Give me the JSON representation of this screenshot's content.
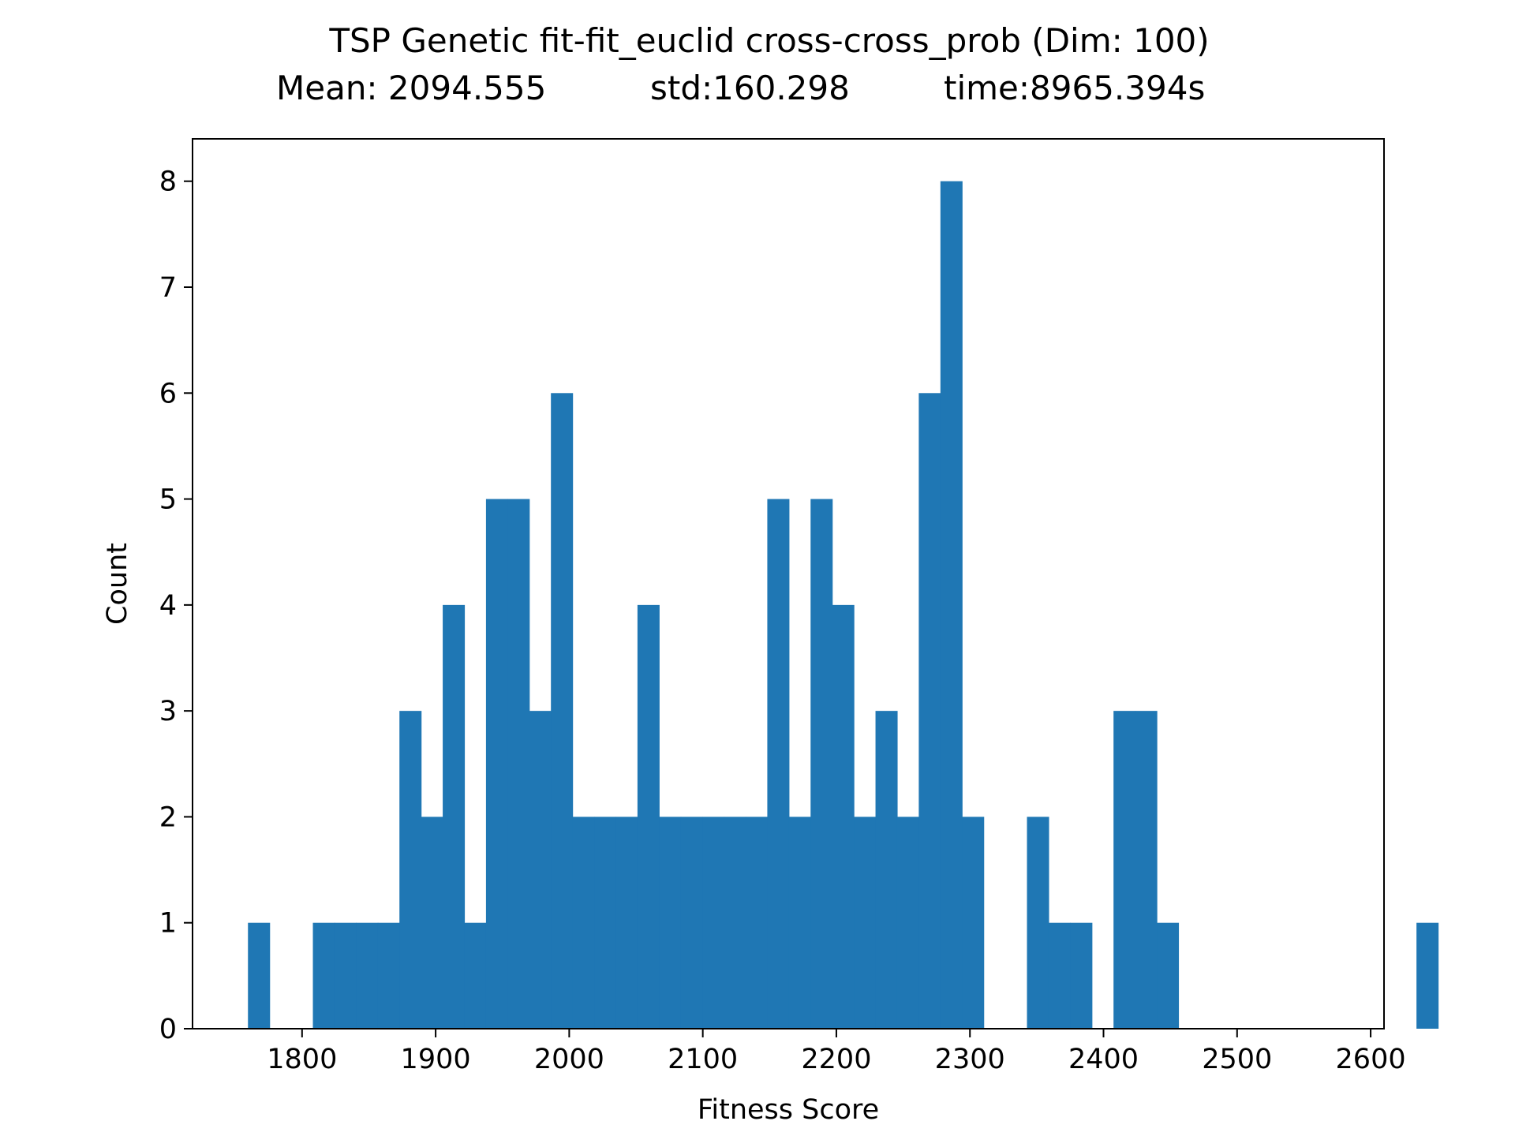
{
  "chart_data": {
    "type": "bar",
    "title": "TSP Genetic fit-fit_euclid cross-cross_prob (Dim: 100)",
    "subtitle": {
      "mean": "Mean: 2094.555",
      "std": "std:160.298",
      "time": "time:8965.394s"
    },
    "xlabel": "Fitness Score",
    "ylabel": "Count",
    "xlim": [
      1718,
      2610
    ],
    "ylim": [
      0,
      8.4
    ],
    "xticks": [
      1800,
      1900,
      2000,
      2100,
      2200,
      2300,
      2400,
      2500,
      2600
    ],
    "yticks": [
      0,
      1,
      2,
      3,
      4,
      5,
      6,
      7,
      8
    ],
    "bin_start": 1759.5,
    "bin_width": 16.2,
    "counts": [
      1,
      0,
      0,
      1,
      1,
      1,
      1,
      3,
      2,
      4,
      1,
      5,
      5,
      3,
      6,
      2,
      2,
      2,
      4,
      2,
      2,
      2,
      2,
      2,
      5,
      2,
      5,
      4,
      2,
      3,
      2,
      6,
      8,
      2,
      0,
      0,
      2,
      1,
      1,
      0,
      3,
      3,
      1,
      0,
      0,
      0,
      0,
      0,
      0,
      0,
      0,
      0,
      0,
      0,
      1
    ],
    "bar_color": "#1f77b4",
    "grid": false
  }
}
